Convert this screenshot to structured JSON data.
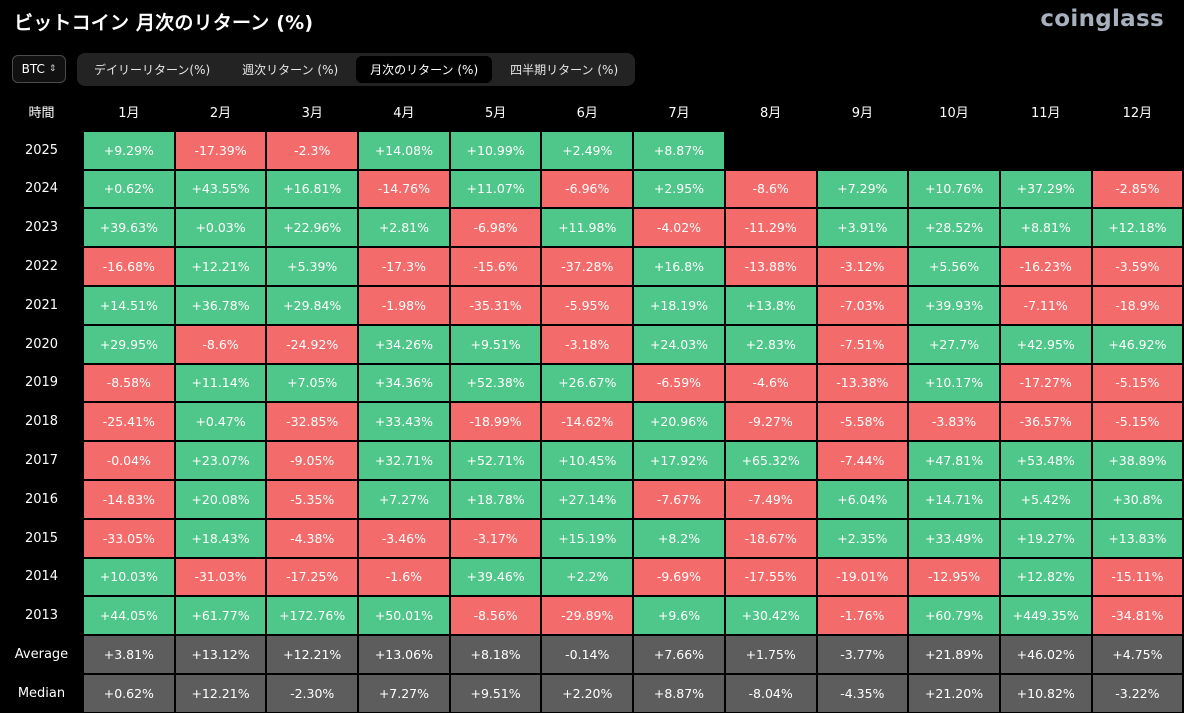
{
  "title": "ビットコイン 月次のリターン (%)",
  "brand": "coinglass",
  "coin_select": {
    "value": "BTC"
  },
  "tabs": [
    {
      "label": "デイリーリターン(%)",
      "active": false
    },
    {
      "label": "週次リターン (%)",
      "active": false
    },
    {
      "label": "月次のリターン (%)",
      "active": true
    },
    {
      "label": "四半期リターン (%)",
      "active": false
    }
  ],
  "colors": {
    "positive": "#4fc78a",
    "negative": "#f46b6b",
    "summary": "#5d5d5d"
  },
  "chart_data": {
    "type": "heatmap",
    "row_header": "時間",
    "columns": [
      "1月",
      "2月",
      "3月",
      "4月",
      "5月",
      "6月",
      "7月",
      "8月",
      "9月",
      "10月",
      "11月",
      "12月"
    ],
    "rows": [
      {
        "label": "2025",
        "values": [
          "+9.29%",
          "-17.39%",
          "-2.3%",
          "+14.08%",
          "+10.99%",
          "+2.49%",
          "+8.87%",
          null,
          null,
          null,
          null,
          null
        ]
      },
      {
        "label": "2024",
        "values": [
          "+0.62%",
          "+43.55%",
          "+16.81%",
          "-14.76%",
          "+11.07%",
          "-6.96%",
          "+2.95%",
          "-8.6%",
          "+7.29%",
          "+10.76%",
          "+37.29%",
          "-2.85%"
        ]
      },
      {
        "label": "2023",
        "values": [
          "+39.63%",
          "+0.03%",
          "+22.96%",
          "+2.81%",
          "-6.98%",
          "+11.98%",
          "-4.02%",
          "-11.29%",
          "+3.91%",
          "+28.52%",
          "+8.81%",
          "+12.18%"
        ]
      },
      {
        "label": "2022",
        "values": [
          "-16.68%",
          "+12.21%",
          "+5.39%",
          "-17.3%",
          "-15.6%",
          "-37.28%",
          "+16.8%",
          "-13.88%",
          "-3.12%",
          "+5.56%",
          "-16.23%",
          "-3.59%"
        ]
      },
      {
        "label": "2021",
        "values": [
          "+14.51%",
          "+36.78%",
          "+29.84%",
          "-1.98%",
          "-35.31%",
          "-5.95%",
          "+18.19%",
          "+13.8%",
          "-7.03%",
          "+39.93%",
          "-7.11%",
          "-18.9%"
        ]
      },
      {
        "label": "2020",
        "values": [
          "+29.95%",
          "-8.6%",
          "-24.92%",
          "+34.26%",
          "+9.51%",
          "-3.18%",
          "+24.03%",
          "+2.83%",
          "-7.51%",
          "+27.7%",
          "+42.95%",
          "+46.92%"
        ]
      },
      {
        "label": "2019",
        "values": [
          "-8.58%",
          "+11.14%",
          "+7.05%",
          "+34.36%",
          "+52.38%",
          "+26.67%",
          "-6.59%",
          "-4.6%",
          "-13.38%",
          "+10.17%",
          "-17.27%",
          "-5.15%"
        ]
      },
      {
        "label": "2018",
        "values": [
          "-25.41%",
          "+0.47%",
          "-32.85%",
          "+33.43%",
          "-18.99%",
          "-14.62%",
          "+20.96%",
          "-9.27%",
          "-5.58%",
          "-3.83%",
          "-36.57%",
          "-5.15%"
        ]
      },
      {
        "label": "2017",
        "values": [
          "-0.04%",
          "+23.07%",
          "-9.05%",
          "+32.71%",
          "+52.71%",
          "+10.45%",
          "+17.92%",
          "+65.32%",
          "-7.44%",
          "+47.81%",
          "+53.48%",
          "+38.89%"
        ]
      },
      {
        "label": "2016",
        "values": [
          "-14.83%",
          "+20.08%",
          "-5.35%",
          "+7.27%",
          "+18.78%",
          "+27.14%",
          "-7.67%",
          "-7.49%",
          "+6.04%",
          "+14.71%",
          "+5.42%",
          "+30.8%"
        ]
      },
      {
        "label": "2015",
        "values": [
          "-33.05%",
          "+18.43%",
          "-4.38%",
          "-3.46%",
          "-3.17%",
          "+15.19%",
          "+8.2%",
          "-18.67%",
          "+2.35%",
          "+33.49%",
          "+19.27%",
          "+13.83%"
        ]
      },
      {
        "label": "2014",
        "values": [
          "+10.03%",
          "-31.03%",
          "-17.25%",
          "-1.6%",
          "+39.46%",
          "+2.2%",
          "-9.69%",
          "-17.55%",
          "-19.01%",
          "-12.95%",
          "+12.82%",
          "-15.11%"
        ]
      },
      {
        "label": "2013",
        "values": [
          "+44.05%",
          "+61.77%",
          "+172.76%",
          "+50.01%",
          "-8.56%",
          "-29.89%",
          "+9.6%",
          "+30.42%",
          "-1.76%",
          "+60.79%",
          "+449.35%",
          "-34.81%"
        ]
      }
    ],
    "summary_rows": [
      {
        "label": "Average",
        "values": [
          "+3.81%",
          "+13.12%",
          "+12.21%",
          "+13.06%",
          "+8.18%",
          "-0.14%",
          "+7.66%",
          "+1.75%",
          "-3.77%",
          "+21.89%",
          "+46.02%",
          "+4.75%"
        ]
      },
      {
        "label": "Median",
        "values": [
          "+0.62%",
          "+12.21%",
          "-2.30%",
          "+7.27%",
          "+9.51%",
          "+2.20%",
          "+8.87%",
          "-8.04%",
          "-4.35%",
          "+21.20%",
          "+10.82%",
          "-3.22%"
        ]
      }
    ]
  }
}
